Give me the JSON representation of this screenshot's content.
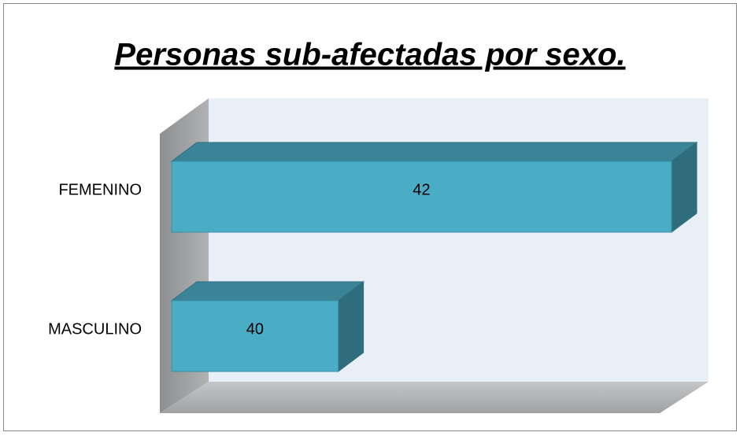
{
  "chart_data": {
    "type": "bar3d_horizontal",
    "title": "Personas sub-afectadas por sexo.",
    "categories": [
      "FEMENINO",
      "MASCULINO"
    ],
    "values": [
      42,
      40
    ],
    "color": "#4bacc6",
    "xlim": [
      39,
      42
    ]
  }
}
